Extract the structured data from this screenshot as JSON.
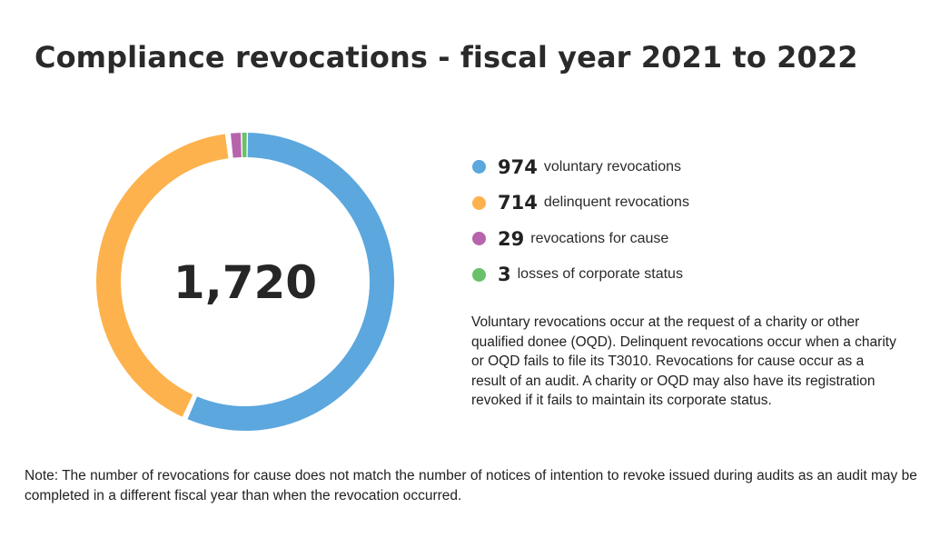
{
  "chart_data": {
    "type": "pie",
    "variant": "donut",
    "title": "Compliance revocations - fiscal year 2021 to 2022",
    "total_label": "1,720",
    "categories": [
      "voluntary revocations",
      "delinquent revocations",
      "revocations for cause",
      "losses of corporate status"
    ],
    "values": [
      974,
      714,
      29,
      3
    ],
    "value_labels": [
      "974",
      "714",
      "29",
      "3"
    ],
    "colors": [
      "#5ba7de",
      "#fdb24d",
      "#b864ad",
      "#69c16a"
    ],
    "legend_position": "right"
  },
  "description": "Voluntary revocations occur at the request of a charity or other qualified donee (OQD). Delinquent revocations occur when a charity or OQD fails to file its T3010. Revocations for cause occur as a result of an audit. A charity or OQD may also have its registration revoked if it fails to maintain its corporate status.",
  "note": "Note: The number of revocations for cause does not match the number of notices of intention to revoke issued during audits as an audit may be completed in a different fiscal year than when the revocation occurred."
}
